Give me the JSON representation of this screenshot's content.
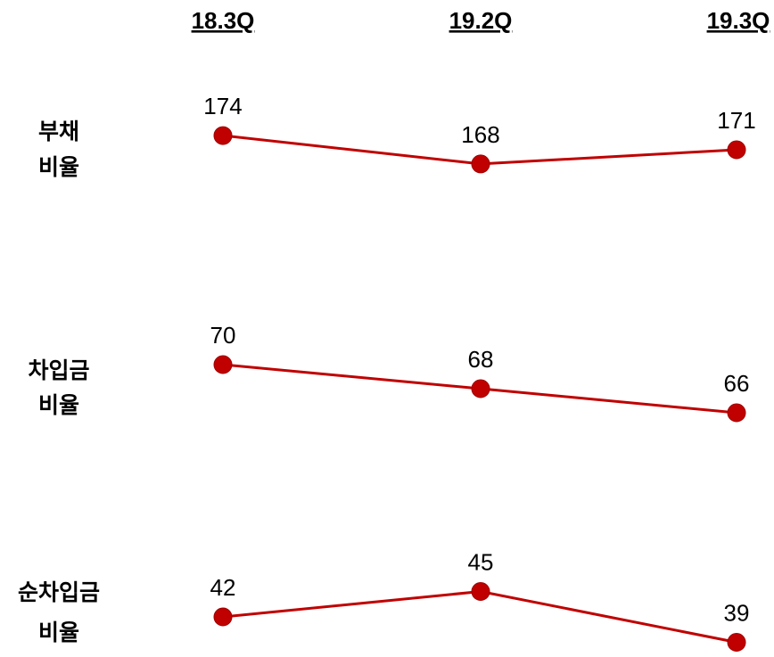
{
  "periods": [
    "18.3Q",
    "19.2Q",
    "19.3Q"
  ],
  "colors": {
    "line": "#c00000"
  },
  "chart_data": {
    "type": "line",
    "categories": [
      "18.3Q",
      "19.2Q",
      "19.3Q"
    ],
    "series": [
      {
        "name": "부채 비율",
        "values": [
          174,
          168,
          171
        ]
      },
      {
        "name": "차입금 비율",
        "values": [
          70,
          68,
          66
        ]
      },
      {
        "name": "순차입금 비율",
        "values": [
          42,
          45,
          39
        ]
      }
    ],
    "title": "",
    "xlabel": "",
    "ylabel": "",
    "grid": false,
    "legend": "none"
  },
  "row_labels": [
    [
      "부채",
      "비율"
    ],
    [
      "차입금",
      "비율"
    ],
    [
      "순차입금",
      "비율"
    ]
  ]
}
